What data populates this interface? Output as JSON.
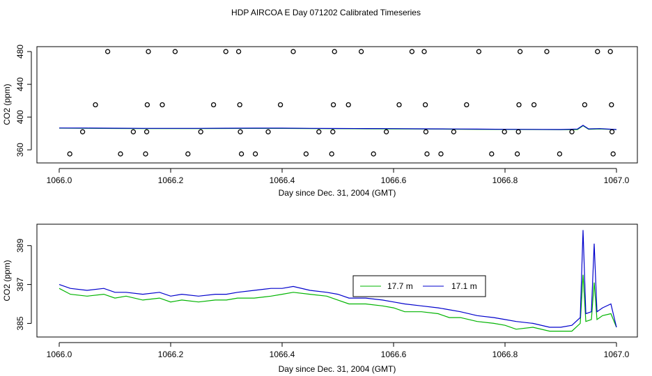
{
  "figure": {
    "title": "HDP AIRCOA E  Day 071202  Calibrated Timeseries"
  },
  "colors": {
    "green": "#00b400",
    "blue": "#0000cc",
    "axis": "#000000"
  },
  "chart_data": [
    {
      "type": "scatter",
      "xlabel": "Day since Dec. 31, 2004 (GMT)",
      "ylabel": "CO2 (ppm)",
      "xlim": [
        1066.0,
        1067.0
      ],
      "ylim": [
        344,
        486
      ],
      "xticks": [
        1066.0,
        1066.2,
        1066.4,
        1066.6,
        1066.8,
        1067.0
      ],
      "xtick_labels": [
        "1066.0",
        "1066.2",
        "1066.4",
        "1066.6",
        "1066.8",
        "1067.0"
      ],
      "yticks": [
        360,
        400,
        440,
        480
      ],
      "ytick_labels": [
        "360",
        "400",
        "440",
        "480"
      ],
      "legend": "none",
      "calibration_points": [
        {
          "x": 1066.019,
          "y": 355
        },
        {
          "x": 1066.042,
          "y": 382
        },
        {
          "x": 1066.065,
          "y": 415
        },
        {
          "x": 1066.087,
          "y": 480
        },
        {
          "x": 1066.11,
          "y": 355
        },
        {
          "x": 1066.133,
          "y": 382
        },
        {
          "x": 1066.155,
          "y": 355
        },
        {
          "x": 1066.157,
          "y": 382
        },
        {
          "x": 1066.158,
          "y": 415
        },
        {
          "x": 1066.16,
          "y": 480
        },
        {
          "x": 1066.185,
          "y": 415
        },
        {
          "x": 1066.208,
          "y": 480
        },
        {
          "x": 1066.231,
          "y": 355
        },
        {
          "x": 1066.254,
          "y": 382
        },
        {
          "x": 1066.277,
          "y": 415
        },
        {
          "x": 1066.299,
          "y": 480
        },
        {
          "x": 1066.322,
          "y": 480
        },
        {
          "x": 1066.324,
          "y": 415
        },
        {
          "x": 1066.325,
          "y": 382
        },
        {
          "x": 1066.327,
          "y": 355
        },
        {
          "x": 1066.352,
          "y": 355
        },
        {
          "x": 1066.375,
          "y": 382
        },
        {
          "x": 1066.397,
          "y": 415
        },
        {
          "x": 1066.42,
          "y": 480
        },
        {
          "x": 1066.443,
          "y": 355
        },
        {
          "x": 1066.466,
          "y": 382
        },
        {
          "x": 1066.489,
          "y": 355
        },
        {
          "x": 1066.491,
          "y": 382
        },
        {
          "x": 1066.492,
          "y": 415
        },
        {
          "x": 1066.494,
          "y": 480
        },
        {
          "x": 1066.519,
          "y": 415
        },
        {
          "x": 1066.542,
          "y": 480
        },
        {
          "x": 1066.564,
          "y": 355
        },
        {
          "x": 1066.587,
          "y": 382
        },
        {
          "x": 1066.61,
          "y": 415
        },
        {
          "x": 1066.633,
          "y": 480
        },
        {
          "x": 1066.655,
          "y": 480
        },
        {
          "x": 1066.657,
          "y": 415
        },
        {
          "x": 1066.658,
          "y": 382
        },
        {
          "x": 1066.66,
          "y": 355
        },
        {
          "x": 1066.685,
          "y": 355
        },
        {
          "x": 1066.708,
          "y": 382
        },
        {
          "x": 1066.731,
          "y": 415
        },
        {
          "x": 1066.753,
          "y": 480
        },
        {
          "x": 1066.776,
          "y": 355
        },
        {
          "x": 1066.799,
          "y": 382
        },
        {
          "x": 1066.822,
          "y": 355
        },
        {
          "x": 1066.824,
          "y": 382
        },
        {
          "x": 1066.825,
          "y": 415
        },
        {
          "x": 1066.827,
          "y": 480
        },
        {
          "x": 1066.852,
          "y": 415
        },
        {
          "x": 1066.875,
          "y": 480
        },
        {
          "x": 1066.898,
          "y": 355
        },
        {
          "x": 1066.92,
          "y": 382
        },
        {
          "x": 1066.943,
          "y": 415
        },
        {
          "x": 1066.966,
          "y": 480
        },
        {
          "x": 1066.989,
          "y": 480
        },
        {
          "x": 1066.991,
          "y": 415
        },
        {
          "x": 1066.992,
          "y": 382
        },
        {
          "x": 1066.994,
          "y": 355
        }
      ],
      "series": [
        {
          "color": "#00b400",
          "x": [
            1066.0,
            1066.05,
            1066.1,
            1066.15,
            1066.2,
            1066.25,
            1066.3,
            1066.35,
            1066.4,
            1066.45,
            1066.5,
            1066.55,
            1066.6,
            1066.65,
            1066.7,
            1066.75,
            1066.8,
            1066.85,
            1066.9,
            1066.93,
            1066.94,
            1066.95,
            1066.97,
            1067.0
          ],
          "values": [
            386.5,
            386.3,
            386.1,
            386.0,
            386.0,
            386.0,
            386.1,
            386.2,
            386.2,
            386.0,
            385.8,
            385.7,
            385.6,
            385.4,
            385.2,
            385.0,
            384.9,
            384.8,
            384.6,
            384.8,
            389.5,
            385.1,
            385.5,
            384.7
          ]
        },
        {
          "color": "#0000cc",
          "x": [
            1066.0,
            1066.05,
            1066.1,
            1066.15,
            1066.2,
            1066.25,
            1066.3,
            1066.35,
            1066.4,
            1066.45,
            1066.5,
            1066.55,
            1066.6,
            1066.65,
            1066.7,
            1066.75,
            1066.8,
            1066.85,
            1066.9,
            1066.93,
            1066.94,
            1066.95,
            1066.97,
            1067.0
          ],
          "values": [
            386.7,
            386.6,
            386.4,
            386.3,
            386.3,
            386.3,
            386.4,
            386.5,
            386.5,
            386.3,
            386.1,
            386.0,
            385.9,
            385.7,
            385.5,
            385.3,
            385.1,
            385.0,
            384.8,
            385.4,
            389.9,
            385.6,
            385.9,
            384.8
          ]
        }
      ]
    },
    {
      "type": "line",
      "xlabel": "Day since Dec. 31, 2004 (GMT)",
      "ylabel": "CO2 (ppm)",
      "xlim": [
        1066.0,
        1067.0
      ],
      "ylim": [
        384.3,
        390.1
      ],
      "xticks": [
        1066.0,
        1066.2,
        1066.4,
        1066.6,
        1066.8,
        1067.0
      ],
      "xtick_labels": [
        "1066.0",
        "1066.2",
        "1066.4",
        "1066.6",
        "1066.8",
        "1067.0"
      ],
      "yticks": [
        385,
        387,
        389
      ],
      "ytick_labels": [
        "385",
        "387",
        "389"
      ],
      "legend": "center-right",
      "series": [
        {
          "name": "17.7 m",
          "color": "#00b400",
          "x": [
            1066.0,
            1066.02,
            1066.05,
            1066.08,
            1066.1,
            1066.12,
            1066.15,
            1066.18,
            1066.2,
            1066.22,
            1066.25,
            1066.28,
            1066.3,
            1066.32,
            1066.35,
            1066.38,
            1066.4,
            1066.42,
            1066.45,
            1066.48,
            1066.5,
            1066.52,
            1066.55,
            1066.58,
            1066.6,
            1066.62,
            1066.65,
            1066.68,
            1066.7,
            1066.72,
            1066.75,
            1066.78,
            1066.8,
            1066.82,
            1066.85,
            1066.88,
            1066.9,
            1066.92,
            1066.935,
            1066.94,
            1066.945,
            1066.955,
            1066.96,
            1066.965,
            1066.975,
            1066.99,
            1067.0
          ],
          "values": [
            386.8,
            386.5,
            386.4,
            386.5,
            386.3,
            386.4,
            386.2,
            386.3,
            386.1,
            386.2,
            386.1,
            386.2,
            386.2,
            386.3,
            386.3,
            386.4,
            386.5,
            386.6,
            386.5,
            386.4,
            386.2,
            386.0,
            386.0,
            385.9,
            385.8,
            385.6,
            385.6,
            385.5,
            385.3,
            385.3,
            385.1,
            385.0,
            384.9,
            384.7,
            384.8,
            384.6,
            384.6,
            384.6,
            385.0,
            387.5,
            385.1,
            385.2,
            387.1,
            385.2,
            385.4,
            385.5,
            384.8
          ]
        },
        {
          "name": "17.1 m",
          "color": "#0000cc",
          "x": [
            1066.0,
            1066.02,
            1066.05,
            1066.08,
            1066.1,
            1066.12,
            1066.15,
            1066.18,
            1066.2,
            1066.22,
            1066.25,
            1066.28,
            1066.3,
            1066.32,
            1066.35,
            1066.38,
            1066.4,
            1066.42,
            1066.45,
            1066.48,
            1066.5,
            1066.52,
            1066.55,
            1066.58,
            1066.6,
            1066.62,
            1066.65,
            1066.68,
            1066.7,
            1066.72,
            1066.75,
            1066.78,
            1066.8,
            1066.82,
            1066.85,
            1066.88,
            1066.9,
            1066.92,
            1066.935,
            1066.94,
            1066.945,
            1066.955,
            1066.96,
            1066.965,
            1066.975,
            1066.99,
            1067.0
          ],
          "values": [
            387.0,
            386.8,
            386.7,
            386.8,
            386.6,
            386.6,
            386.5,
            386.6,
            386.4,
            386.5,
            386.4,
            386.5,
            386.5,
            386.6,
            386.7,
            386.8,
            386.8,
            386.9,
            386.7,
            386.6,
            386.5,
            386.3,
            386.3,
            386.2,
            386.1,
            386.0,
            385.9,
            385.8,
            385.7,
            385.6,
            385.4,
            385.3,
            385.2,
            385.1,
            385.0,
            384.8,
            384.8,
            384.9,
            385.3,
            389.8,
            385.5,
            385.6,
            389.1,
            385.6,
            385.8,
            386.0,
            384.8
          ]
        }
      ]
    }
  ]
}
